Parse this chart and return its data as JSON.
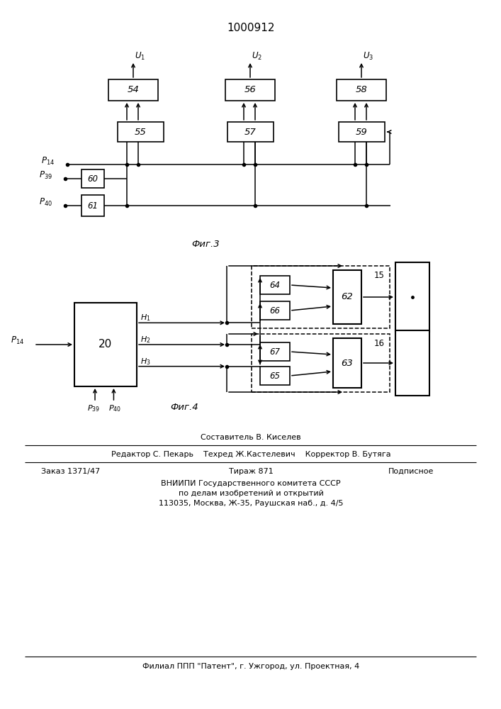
{
  "title": "1000912",
  "bg_color": "#ffffff",
  "fig3_caption": "Фиг.3",
  "fig4_caption": "Фиг.4",
  "footer": {
    "line1": "Составитель В. Киселев",
    "line2": "Редактор С. Пекарь    Техред Ж.Кастелевич    Корректор В. Бутяга",
    "line3a": "Заказ 1371/47",
    "line3b": "Тираж 871",
    "line3c": "Подписное",
    "line4": "ВНИИПИ Государственного комитета СССР",
    "line5": "по делам изобретений и открытий",
    "line6": "113035, Москва, Ж-35, Раушская наб., д. 4/5",
    "line7": "Филиал ППП \"Патент\", г. Ужгород, ул. Проектная, 4"
  }
}
